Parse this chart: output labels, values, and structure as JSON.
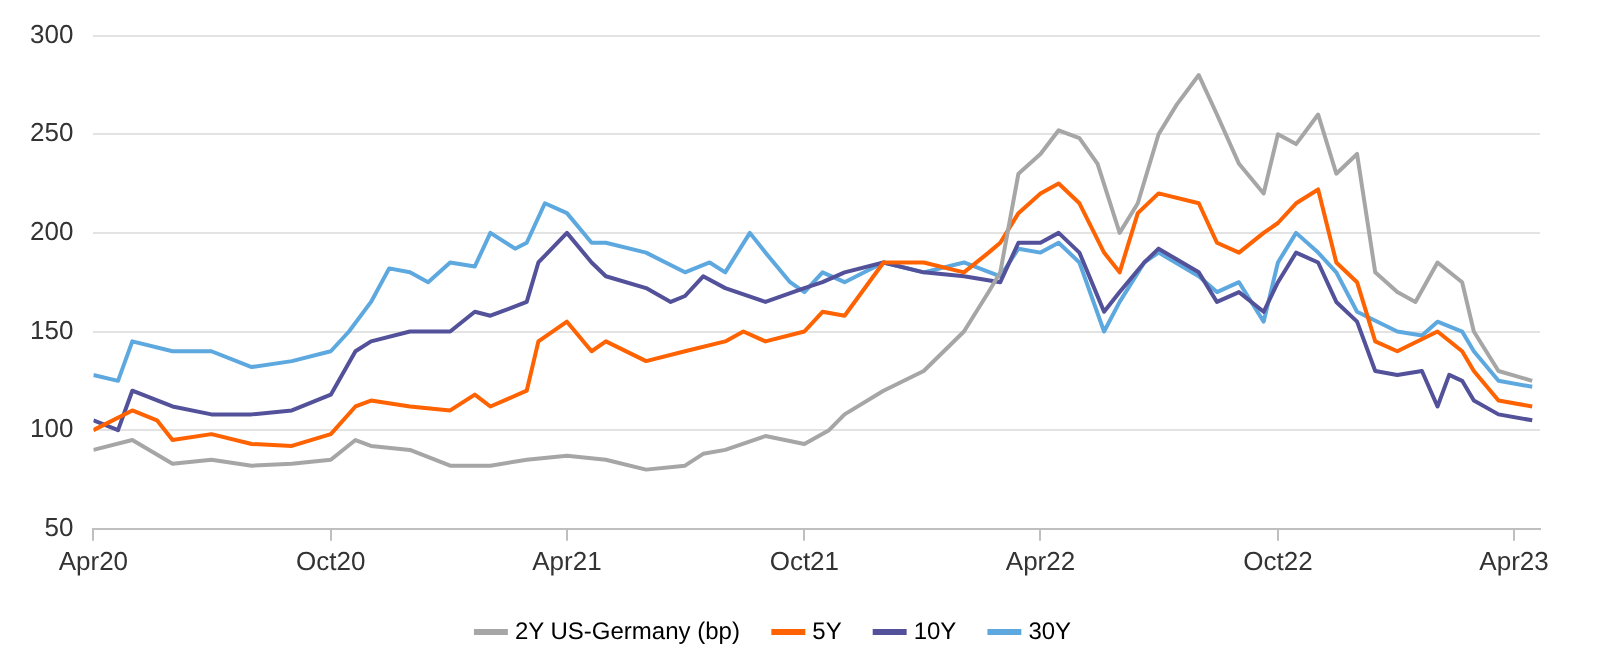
{
  "chart_data": {
    "type": "line",
    "grid": "y",
    "legend": "bottom",
    "marker": "none",
    "line_style": "solid",
    "xlim": [
      "2020-04-01",
      "2023-04-21"
    ],
    "xticks": [
      {
        "value": "2020-04-01",
        "label": "Apr20"
      },
      {
        "value": "2020-10-01",
        "label": "Oct20"
      },
      {
        "value": "2021-04-01",
        "label": "Apr21"
      },
      {
        "value": "2021-10-01",
        "label": "Oct21"
      },
      {
        "value": "2022-04-01",
        "label": "Apr22"
      },
      {
        "value": "2022-10-01",
        "label": "Oct22"
      },
      {
        "value": "2023-04-01",
        "label": "Apr23"
      }
    ],
    "ylim": [
      50,
      300
    ],
    "yticks": [
      50,
      100,
      150,
      200,
      250,
      300
    ],
    "series": [
      {
        "name": "2Y US-Germany (bp)",
        "color": "#a6a6a6",
        "x": [
          "2020-04-01",
          "2020-05-01",
          "2020-06-01",
          "2020-07-01",
          "2020-08-01",
          "2020-09-01",
          "2020-10-01",
          "2020-10-20",
          "2020-11-01",
          "2020-12-01",
          "2021-01-01",
          "2021-02-01",
          "2021-03-01",
          "2021-04-01",
          "2021-05-01",
          "2021-06-01",
          "2021-07-01",
          "2021-07-15",
          "2021-08-01",
          "2021-09-01",
          "2021-10-01",
          "2021-10-20",
          "2021-11-01",
          "2021-12-01",
          "2022-01-01",
          "2022-02-01",
          "2022-02-20",
          "2022-03-01",
          "2022-03-15",
          "2022-04-01",
          "2022-04-15",
          "2022-05-01",
          "2022-05-15",
          "2022-06-01",
          "2022-06-15",
          "2022-07-01",
          "2022-07-15",
          "2022-08-01",
          "2022-08-15",
          "2022-09-01",
          "2022-09-20",
          "2022-10-01",
          "2022-10-15",
          "2022-11-01",
          "2022-11-15",
          "2022-12-01",
          "2022-12-15",
          "2023-01-01",
          "2023-01-15",
          "2023-02-01",
          "2023-02-20",
          "2023-03-01",
          "2023-03-20",
          "2023-04-15"
        ],
        "values": [
          90,
          95,
          83,
          85,
          82,
          83,
          85,
          95,
          92,
          90,
          82,
          82,
          85,
          87,
          85,
          80,
          82,
          88,
          90,
          97,
          93,
          100,
          108,
          120,
          130,
          150,
          170,
          180,
          230,
          240,
          252,
          248,
          235,
          200,
          215,
          250,
          265,
          280,
          260,
          235,
          220,
          250,
          245,
          260,
          230,
          240,
          180,
          170,
          165,
          185,
          175,
          150,
          130,
          125
        ]
      },
      {
        "name": "5Y",
        "color": "#ff6200",
        "x": [
          "2020-04-01",
          "2020-05-01",
          "2020-05-20",
          "2020-06-01",
          "2020-07-01",
          "2020-08-01",
          "2020-09-01",
          "2020-10-01",
          "2020-10-20",
          "2020-11-01",
          "2020-12-01",
          "2021-01-01",
          "2021-01-20",
          "2021-02-01",
          "2021-03-01",
          "2021-03-10",
          "2021-04-01",
          "2021-04-20",
          "2021-05-01",
          "2021-06-01",
          "2021-07-01",
          "2021-08-01",
          "2021-08-15",
          "2021-09-01",
          "2021-10-01",
          "2021-10-15",
          "2021-11-01",
          "2021-12-01",
          "2022-01-01",
          "2022-02-01",
          "2022-02-20",
          "2022-03-01",
          "2022-03-15",
          "2022-04-01",
          "2022-04-15",
          "2022-05-01",
          "2022-05-20",
          "2022-06-01",
          "2022-06-15",
          "2022-07-01",
          "2022-08-01",
          "2022-08-15",
          "2022-09-01",
          "2022-09-20",
          "2022-10-01",
          "2022-10-15",
          "2022-11-01",
          "2022-11-15",
          "2022-12-01",
          "2022-12-15",
          "2023-01-01",
          "2023-02-01",
          "2023-02-20",
          "2023-03-01",
          "2023-03-20",
          "2023-04-15"
        ],
        "values": [
          100,
          110,
          105,
          95,
          98,
          93,
          92,
          98,
          112,
          115,
          112,
          110,
          118,
          112,
          120,
          145,
          155,
          140,
          145,
          135,
          140,
          145,
          150,
          145,
          150,
          160,
          158,
          185,
          185,
          180,
          190,
          195,
          210,
          220,
          225,
          215,
          190,
          180,
          210,
          220,
          215,
          195,
          190,
          200,
          205,
          215,
          222,
          185,
          175,
          145,
          140,
          150,
          140,
          130,
          115,
          112
        ]
      },
      {
        "name": "10Y",
        "color": "#525199",
        "x": [
          "2020-04-01",
          "2020-04-20",
          "2020-05-01",
          "2020-06-01",
          "2020-07-01",
          "2020-08-01",
          "2020-09-01",
          "2020-10-01",
          "2020-10-20",
          "2020-11-01",
          "2020-12-01",
          "2021-01-01",
          "2021-01-20",
          "2021-02-01",
          "2021-03-01",
          "2021-03-10",
          "2021-04-01",
          "2021-04-20",
          "2021-05-01",
          "2021-06-01",
          "2021-06-20",
          "2021-07-01",
          "2021-07-15",
          "2021-08-01",
          "2021-09-01",
          "2021-10-01",
          "2021-10-15",
          "2021-11-01",
          "2021-12-01",
          "2022-01-01",
          "2022-02-01",
          "2022-03-01",
          "2022-03-15",
          "2022-04-01",
          "2022-04-15",
          "2022-05-01",
          "2022-05-20",
          "2022-06-01",
          "2022-06-20",
          "2022-07-01",
          "2022-08-01",
          "2022-08-15",
          "2022-09-01",
          "2022-09-20",
          "2022-10-01",
          "2022-10-15",
          "2022-11-01",
          "2022-11-15",
          "2022-12-01",
          "2022-12-15",
          "2023-01-01",
          "2023-01-20",
          "2023-02-01",
          "2023-02-10",
          "2023-02-20",
          "2023-03-01",
          "2023-03-20",
          "2023-04-15"
        ],
        "values": [
          105,
          100,
          120,
          112,
          108,
          108,
          110,
          118,
          140,
          145,
          150,
          150,
          160,
          158,
          165,
          185,
          200,
          185,
          178,
          172,
          165,
          168,
          178,
          172,
          165,
          172,
          175,
          180,
          185,
          180,
          178,
          175,
          195,
          195,
          200,
          190,
          160,
          170,
          185,
          192,
          180,
          165,
          170,
          160,
          175,
          190,
          185,
          165,
          155,
          130,
          128,
          130,
          112,
          128,
          125,
          115,
          108,
          105
        ]
      },
      {
        "name": "30Y",
        "color": "#5ea8e0",
        "x": [
          "2020-04-01",
          "2020-04-20",
          "2020-05-01",
          "2020-06-01",
          "2020-07-01",
          "2020-08-01",
          "2020-09-01",
          "2020-10-01",
          "2020-10-15",
          "2020-11-01",
          "2020-11-15",
          "2020-12-01",
          "2020-12-15",
          "2021-01-01",
          "2021-01-20",
          "2021-02-01",
          "2021-02-20",
          "2021-03-01",
          "2021-03-15",
          "2021-04-01",
          "2021-04-20",
          "2021-05-01",
          "2021-06-01",
          "2021-07-01",
          "2021-07-20",
          "2021-08-01",
          "2021-08-20",
          "2021-09-01",
          "2021-09-20",
          "2021-10-01",
          "2021-10-15",
          "2021-11-01",
          "2021-12-01",
          "2022-01-01",
          "2022-02-01",
          "2022-03-01",
          "2022-03-15",
          "2022-04-01",
          "2022-04-15",
          "2022-05-01",
          "2022-05-20",
          "2022-06-01",
          "2022-06-20",
          "2022-07-01",
          "2022-08-01",
          "2022-08-15",
          "2022-09-01",
          "2022-09-20",
          "2022-10-01",
          "2022-10-15",
          "2022-11-01",
          "2022-11-15",
          "2022-12-01",
          "2023-01-01",
          "2023-01-20",
          "2023-02-01",
          "2023-02-20",
          "2023-03-01",
          "2023-03-20",
          "2023-04-15"
        ],
        "values": [
          128,
          125,
          145,
          140,
          140,
          132,
          135,
          140,
          150,
          165,
          182,
          180,
          175,
          185,
          183,
          200,
          192,
          195,
          215,
          210,
          195,
          195,
          190,
          180,
          185,
          180,
          200,
          190,
          175,
          170,
          180,
          175,
          185,
          180,
          185,
          178,
          192,
          190,
          195,
          185,
          150,
          165,
          185,
          190,
          178,
          170,
          175,
          155,
          185,
          200,
          190,
          180,
          160,
          150,
          148,
          155,
          150,
          140,
          125,
          122
        ]
      }
    ]
  }
}
